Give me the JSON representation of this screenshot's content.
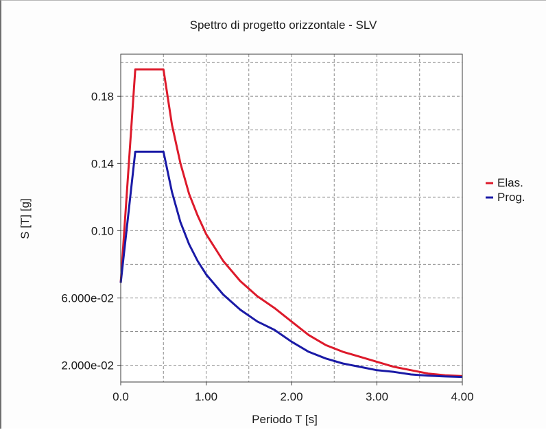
{
  "chart_data": {
    "type": "line",
    "title": "Spettro di progetto orizzontale - SLV",
    "xlabel": "Periodo T [s]",
    "ylabel": "S [T] [g]",
    "xlim": [
      0,
      4.0
    ],
    "ylim": [
      0.01,
      0.205
    ],
    "x_ticks": [
      0,
      1,
      2,
      3,
      4
    ],
    "x_tick_labels": [
      "0.0",
      "1.00",
      "2.00",
      "3.00",
      "4.00"
    ],
    "y_ticks": [
      0.02,
      0.06,
      0.1,
      0.14,
      0.18
    ],
    "y_tick_labels": [
      "2.000e-02",
      "6.000e-02",
      "0.10",
      "0.14",
      "0.18"
    ],
    "grid": true,
    "legend_position": "right",
    "series": [
      {
        "name": "Elas.",
        "color": "#dd1a2b",
        "x": [
          0,
          0.17,
          0.5,
          0.6,
          0.7,
          0.8,
          0.9,
          1.0,
          1.2,
          1.4,
          1.6,
          1.8,
          2.0,
          2.2,
          2.4,
          2.6,
          2.8,
          3.0,
          3.2,
          3.4,
          3.6,
          3.8,
          4.0
        ],
        "values": [
          0.069,
          0.196,
          0.196,
          0.163,
          0.14,
          0.122,
          0.109,
          0.098,
          0.082,
          0.07,
          0.061,
          0.054,
          0.046,
          0.038,
          0.032,
          0.028,
          0.025,
          0.022,
          0.019,
          0.017,
          0.015,
          0.014,
          0.0135
        ]
      },
      {
        "name": "Prog.",
        "color": "#1a1aa6",
        "x": [
          0,
          0.17,
          0.5,
          0.6,
          0.7,
          0.8,
          0.9,
          1.0,
          1.2,
          1.4,
          1.6,
          1.8,
          2.0,
          2.2,
          2.4,
          2.6,
          2.8,
          3.0,
          3.2,
          3.4,
          3.6,
          3.8,
          4.0
        ],
        "values": [
          0.069,
          0.147,
          0.147,
          0.123,
          0.105,
          0.092,
          0.082,
          0.074,
          0.062,
          0.053,
          0.046,
          0.041,
          0.034,
          0.028,
          0.024,
          0.021,
          0.019,
          0.017,
          0.016,
          0.0145,
          0.0138,
          0.0133,
          0.013
        ]
      }
    ]
  }
}
